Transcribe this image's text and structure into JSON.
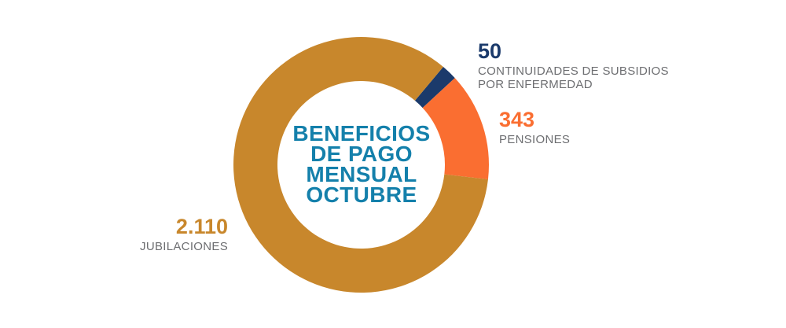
{
  "page": {
    "background": "#FFFFFF"
  },
  "chart_data": {
    "type": "pie",
    "subtype": "donut",
    "title": "BENEFICIOS DE PAGO MENSUAL OCTUBRE",
    "center_label_lines": [
      "BENEFICIOS",
      "DE PAGO",
      "MENSUAL",
      "OCTUBRE"
    ],
    "center_label_color": "#1480AB",
    "label_text_color": "#6D6E71",
    "start_angle_deg": 40,
    "clockwise": true,
    "total": 2503,
    "legend_position": "callouts-around-ring",
    "segments": [
      {
        "name": "subsidios",
        "value": 50,
        "value_display": "50",
        "label_lines": [
          "CONTINUIDADES DE SUBSIDIOS",
          "POR ENFERMEDAD"
        ],
        "color": "#1B3A6B"
      },
      {
        "name": "pensiones",
        "value": 343,
        "value_display": "343",
        "label_lines": [
          "PENSIONES"
        ],
        "color": "#FA6E31"
      },
      {
        "name": "jubilaciones",
        "value": 2110,
        "value_display": "2.110",
        "label_lines": [
          "JUBILACIONES"
        ],
        "color": "#C8872C"
      }
    ]
  }
}
